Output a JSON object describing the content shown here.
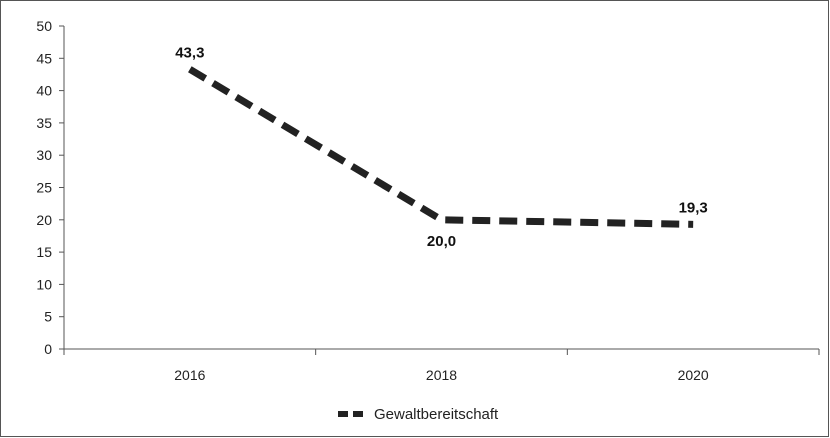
{
  "chart_data": {
    "type": "line",
    "categories": [
      "2016",
      "2018",
      "2020"
    ],
    "x_axis_extent": [
      "2015",
      "2021"
    ],
    "series": [
      {
        "name": "Gewaltbereitschaft",
        "values": [
          43.3,
          20.0,
          19.3
        ],
        "value_labels": [
          "43,3",
          "20,0",
          "19,3"
        ],
        "color": "#222222",
        "line_style": "dashed"
      }
    ],
    "ylim": [
      0,
      50
    ],
    "y_ticks": [
      "0",
      "5",
      "10",
      "15",
      "20",
      "25",
      "30",
      "35",
      "40",
      "45",
      "50"
    ],
    "grid": false,
    "legend": {
      "position": "bottom",
      "entries": [
        "Gewaltbereitschaft"
      ]
    },
    "title": "",
    "xlabel": "",
    "ylabel": ""
  }
}
